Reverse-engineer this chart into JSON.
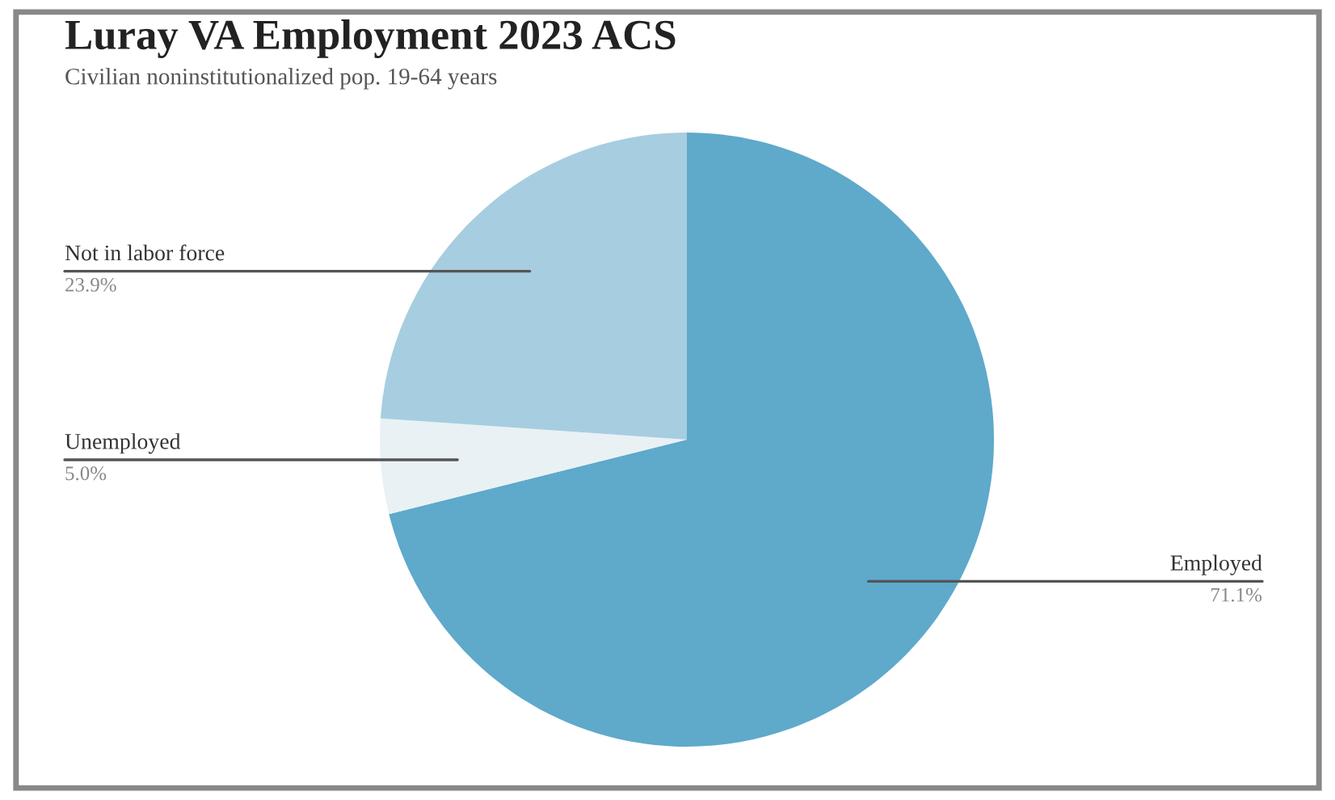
{
  "chart_data": {
    "type": "pie",
    "title": "Luray VA Employment 2023 ACS",
    "subtitle": "Civilian noninstitutionalized pop. 19-64 years",
    "categories": [
      "Employed",
      "Unemployed",
      "Not in labor force"
    ],
    "values": [
      71.1,
      5.0,
      23.9
    ],
    "value_labels": [
      "71.1%",
      "5.0%",
      "23.9%"
    ],
    "colors": [
      "#5fa9cb",
      "#e9f1f5",
      "#a7cde0"
    ],
    "legend": false
  }
}
